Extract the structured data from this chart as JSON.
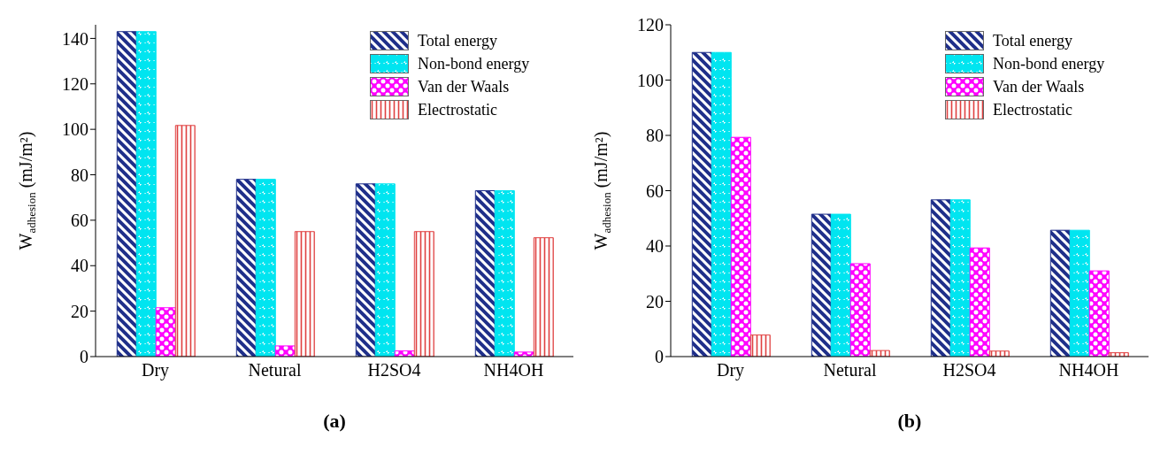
{
  "chart_data": [
    {
      "type": "bar",
      "categories": [
        "Dry",
        "Netural",
        "H2SO4",
        "NH4OH"
      ],
      "ylabel": "W$_{adhesion}$ (mJ/m²)",
      "ylim": [
        0,
        146
      ],
      "yticks": [
        0,
        20,
        40,
        60,
        80,
        100,
        120,
        140
      ],
      "legend": "top right",
      "annotations": [
        "(a)"
      ],
      "series": [
        {
          "name": "Total energy",
          "color": "#1f2f8a",
          "values": [
            143,
            78,
            76,
            73
          ]
        },
        {
          "name": "Non-bond energy",
          "color": "#00e5f0",
          "values": [
            143,
            78,
            76,
            73
          ]
        },
        {
          "name": "Van der Waals",
          "color": "#ff00ff",
          "values": [
            21.5,
            4.7,
            2.5,
            2
          ]
        },
        {
          "name": "Electrostatic",
          "color": "#e04040",
          "values": [
            101.7,
            55,
            55,
            52.3
          ]
        }
      ]
    },
    {
      "type": "bar",
      "categories": [
        "Dry",
        "Netural",
        "H2SO4",
        "NH4OH"
      ],
      "ylabel": "W$_{adhesion}$ (mJ/m²)",
      "ylim": [
        0,
        120
      ],
      "yticks": [
        0,
        20,
        40,
        60,
        80,
        100,
        120
      ],
      "legend": "top right",
      "annotations": [
        "(b)"
      ],
      "series": [
        {
          "name": "Total energy",
          "color": "#1f2f8a",
          "values": [
            110,
            51.5,
            56.7,
            45.7
          ]
        },
        {
          "name": "Non-bond energy",
          "color": "#00e5f0",
          "values": [
            110,
            51.5,
            56.7,
            45.7
          ]
        },
        {
          "name": "Van der Waals",
          "color": "#ff00ff",
          "values": [
            79.3,
            33.6,
            39.3,
            31
          ]
        },
        {
          "name": "Electrostatic",
          "color": "#e04040",
          "values": [
            7.8,
            2.2,
            2,
            1.4
          ]
        }
      ]
    }
  ]
}
